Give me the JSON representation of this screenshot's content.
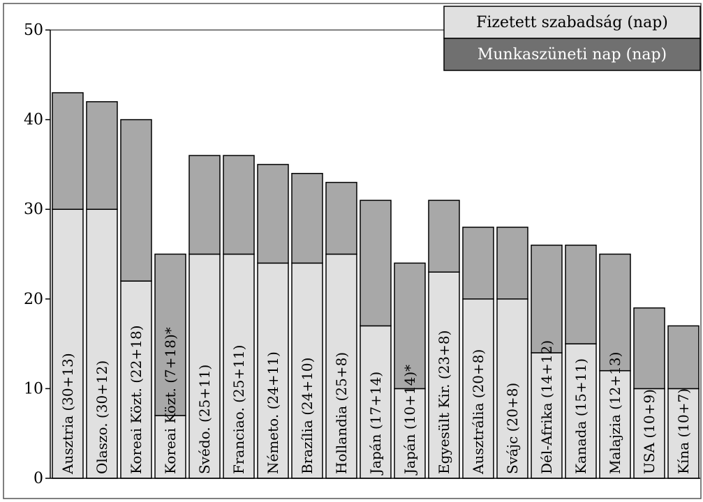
{
  "chart_data": {
    "type": "stacked_bar",
    "categories": [
      "Ausztria (30+13)",
      "Olaszo. (30+12)",
      "Koreai Közt. (22+18)",
      "Koreai Közt. (7+18)*",
      "Svédo. (25+11)",
      "Franciao. (25+11)",
      "Németo. (24+11)",
      "Brazília (24+10)",
      "Hollandia (25+8)",
      "Japán (17+14)",
      "Japán (10+14)*",
      "Egyesült Kir. (23+8)",
      "Ausztrália (20+8)",
      "Svájc (20+8)",
      "Dél-Afrika (14+12)",
      "Kanada (15+11)",
      "Malajzia (12+13)",
      "USA (10+9)",
      "Kína (10+7)"
    ],
    "series": [
      {
        "name": "Fizetett szabadság (nap)",
        "color": "#e0e0e0",
        "legend_color": "#e0e0e0",
        "values": [
          30,
          30,
          22,
          7,
          25,
          25,
          24,
          24,
          25,
          17,
          10,
          23,
          20,
          20,
          14,
          15,
          12,
          10,
          10
        ]
      },
      {
        "name": "Munkaszüneti nap (nap)",
        "color": "#a8a8a8",
        "legend_color": "#707070",
        "values": [
          13,
          12,
          18,
          18,
          11,
          11,
          11,
          10,
          8,
          14,
          14,
          8,
          8,
          8,
          12,
          11,
          13,
          9,
          7
        ]
      }
    ],
    "ylim": [
      0,
      50
    ],
    "yticks": [
      0,
      10,
      20,
      30,
      40,
      50
    ],
    "grid": false,
    "legend": "top-right"
  }
}
